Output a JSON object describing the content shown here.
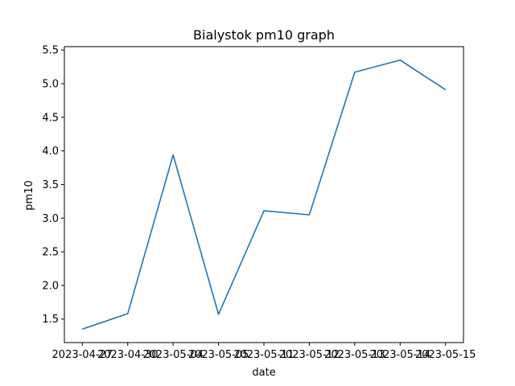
{
  "chart_data": {
    "type": "line",
    "title": "Bialystok pm10 graph",
    "xlabel": "date",
    "ylabel": "pm10",
    "x": [
      "2023-04-27",
      "2023-04-30",
      "2023-05-04",
      "2023-05-05",
      "2023-05-11",
      "2023-05-12",
      "2023-05-13",
      "2023-05-14",
      "2023-05-15"
    ],
    "series": [
      {
        "values": [
          1.35,
          1.58,
          3.94,
          1.57,
          3.11,
          3.05,
          5.17,
          5.35,
          4.91
        ],
        "color": "#1f77b4"
      }
    ],
    "yticks": [
      1.5,
      2.0,
      2.5,
      3.0,
      3.5,
      4.0,
      4.5,
      5.0,
      5.5
    ],
    "ytick_labels": [
      "1.5",
      "2.0",
      "2.5",
      "3.0",
      "3.5",
      "4.0",
      "4.5",
      "5.0",
      "5.5"
    ],
    "ylim": [
      1.15,
      5.55
    ],
    "grid": false,
    "legend": "none"
  }
}
